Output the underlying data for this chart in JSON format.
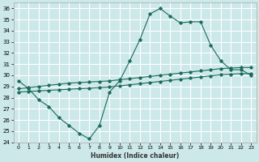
{
  "xlabel": "Humidex (Indice chaleur)",
  "bg_color": "#cce8e8",
  "grid_color": "#ffffff",
  "line_color": "#1a6b5a",
  "xlim": [
    -0.5,
    23.5
  ],
  "ylim": [
    24,
    36.5
  ],
  "xticks": [
    0,
    1,
    2,
    3,
    4,
    5,
    6,
    7,
    8,
    9,
    10,
    11,
    12,
    13,
    14,
    15,
    16,
    17,
    18,
    19,
    20,
    21,
    22,
    23
  ],
  "yticks": [
    24,
    25,
    26,
    27,
    28,
    29,
    30,
    31,
    32,
    33,
    34,
    35,
    36
  ],
  "line1_x": [
    0,
    1,
    2,
    3,
    4,
    5,
    6,
    7,
    8,
    9,
    10,
    11,
    12,
    13,
    14,
    15,
    16,
    17,
    18,
    19,
    20,
    21,
    22,
    23
  ],
  "line1_y": [
    29.5,
    28.8,
    27.8,
    27.2,
    26.2,
    25.5,
    24.8,
    24.3,
    25.5,
    28.5,
    29.5,
    31.3,
    33.2,
    35.5,
    36.0,
    35.3,
    34.7,
    34.8,
    34.8,
    32.7,
    31.3,
    30.5,
    30.5,
    30.0
  ],
  "line2_x": [
    0,
    1,
    2,
    3,
    4,
    5,
    6,
    7,
    8,
    9,
    10,
    11,
    12,
    13,
    14,
    15,
    16,
    17,
    18,
    19,
    20,
    21,
    22,
    23
  ],
  "line2_y": [
    28.8,
    28.9,
    29.0,
    29.1,
    29.2,
    29.3,
    29.35,
    29.4,
    29.45,
    29.5,
    29.6,
    29.7,
    29.8,
    29.9,
    30.0,
    30.1,
    30.2,
    30.3,
    30.4,
    30.5,
    30.6,
    30.65,
    30.7,
    30.7
  ],
  "line3_x": [
    0,
    1,
    2,
    3,
    4,
    5,
    6,
    7,
    8,
    9,
    10,
    11,
    12,
    13,
    14,
    15,
    16,
    17,
    18,
    19,
    20,
    21,
    22,
    23
  ],
  "line3_y": [
    28.5,
    28.55,
    28.6,
    28.65,
    28.7,
    28.75,
    28.8,
    28.85,
    28.9,
    28.95,
    29.05,
    29.15,
    29.25,
    29.35,
    29.45,
    29.55,
    29.65,
    29.75,
    29.85,
    29.95,
    30.05,
    30.1,
    30.15,
    30.15
  ]
}
